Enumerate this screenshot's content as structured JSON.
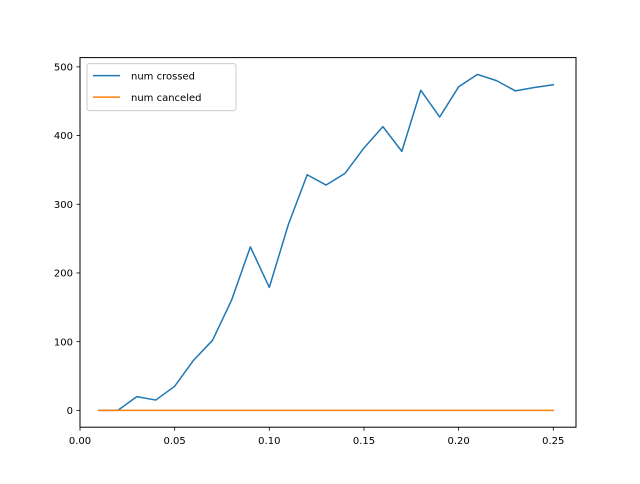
{
  "chart_data": {
    "type": "line",
    "title": "",
    "xlabel": "",
    "ylabel": "",
    "xlim": [
      0.0,
      0.262
    ],
    "ylim": [
      -24.5,
      513.5
    ],
    "xticks": [
      0.0,
      0.05,
      0.1,
      0.15,
      0.2,
      0.25
    ],
    "xtick_labels": [
      "0.00",
      "0.05",
      "0.10",
      "0.15",
      "0.20",
      "0.25"
    ],
    "yticks": [
      0,
      100,
      200,
      300,
      400,
      500
    ],
    "ytick_labels": [
      "0",
      "100",
      "200",
      "300",
      "400",
      "500"
    ],
    "grid": false,
    "legend_position": "upper-left",
    "x": [
      0.01,
      0.02,
      0.03,
      0.04,
      0.05,
      0.06,
      0.07,
      0.08,
      0.09,
      0.1,
      0.11,
      0.12,
      0.13,
      0.14,
      0.15,
      0.16,
      0.17,
      0.18,
      0.19,
      0.2,
      0.21,
      0.22,
      0.23,
      0.24,
      0.25
    ],
    "series": [
      {
        "name": "num crossed",
        "color": "#1f77b4",
        "values": [
          0,
          0,
          20,
          15,
          35,
          73,
          102,
          160,
          238,
          179,
          270,
          343,
          328,
          345,
          382,
          413,
          377,
          466,
          427,
          471,
          489,
          480,
          465,
          470,
          474
        ]
      },
      {
        "name": "num canceled",
        "color": "#ff7f0e",
        "values": [
          0,
          0,
          0,
          0,
          0,
          0,
          0,
          0,
          0,
          0,
          0,
          0,
          0,
          0,
          0,
          0,
          0,
          0,
          0,
          0,
          0,
          0,
          0,
          0,
          0
        ]
      }
    ]
  }
}
